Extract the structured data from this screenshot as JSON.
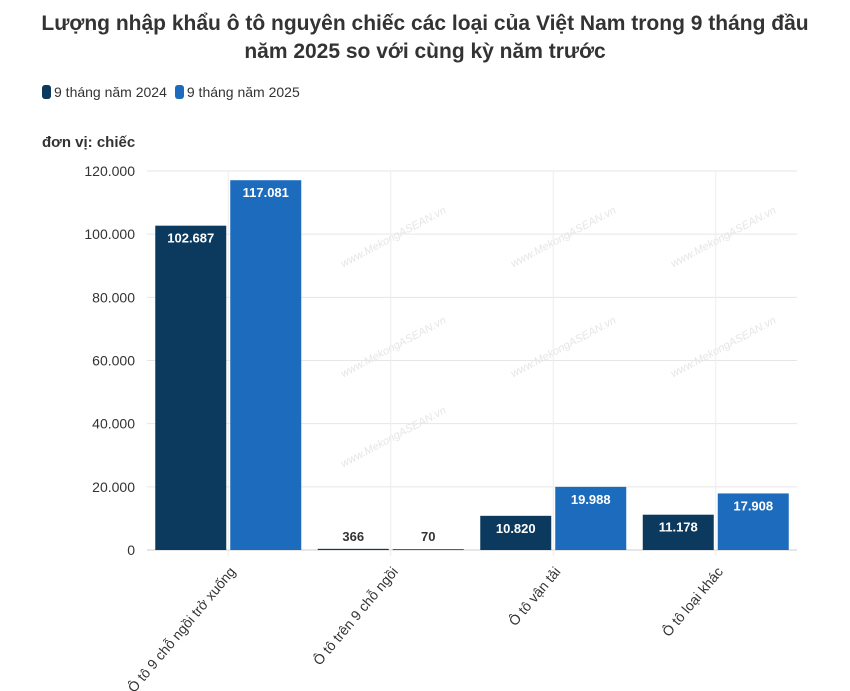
{
  "chart_data": {
    "type": "bar",
    "title": "Lượng nhập khẩu ô tô nguyên chiếc các loại của Việt Nam trong 9 tháng đầu năm 2025 so với cùng kỳ năm trước",
    "ylabel": "đơn vị: chiếc",
    "xlabel": "",
    "categories": [
      "Ô tô 9 chỗ ngồi trở xuống",
      "Ô tô trên 9 chỗ ngồi",
      "Ô tô vận tải",
      "Ô tô loại khác"
    ],
    "series": [
      {
        "name": "9 tháng năm 2024",
        "values": [
          102687,
          366,
          10820,
          11178
        ],
        "labels": [
          "102.687",
          "366",
          "10.820",
          "11.178"
        ],
        "color": "#0b3a5e"
      },
      {
        "name": "9 tháng năm 2025",
        "values": [
          117081,
          70,
          19988,
          17908
        ],
        "labels": [
          "117.081",
          "70",
          "19.988",
          "17.908"
        ],
        "color": "#1c6bbd"
      }
    ],
    "ylim": [
      0,
      120000
    ],
    "yticks": [
      0,
      20000,
      40000,
      60000,
      80000,
      100000,
      120000
    ],
    "ytick_labels": [
      "0",
      "20.000",
      "40.000",
      "60.000",
      "80.000",
      "100.000",
      "120.000"
    ],
    "grid": true,
    "legend_position": "top-left",
    "watermark": "www.MekongASEAN.vn"
  }
}
